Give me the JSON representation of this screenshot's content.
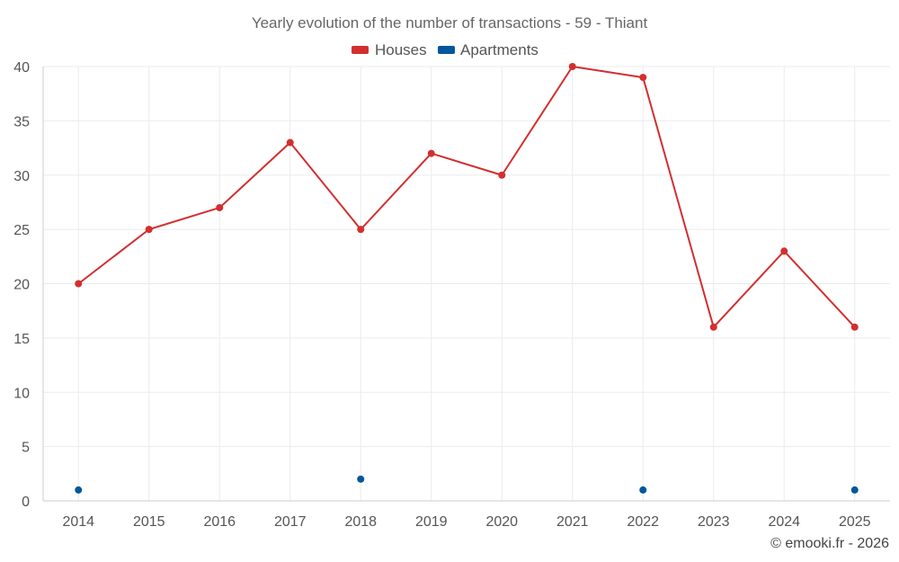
{
  "chart_data": {
    "type": "line",
    "title": "Yearly evolution of the number of transactions - 59 - Thiant",
    "categories": [
      "2014",
      "2015",
      "2016",
      "2017",
      "2018",
      "2019",
      "2020",
      "2021",
      "2022",
      "2023",
      "2024",
      "2025"
    ],
    "series": [
      {
        "name": "Houses",
        "color": "#d32f2f",
        "values": [
          20,
          25,
          27,
          33,
          25,
          32,
          30,
          40,
          39,
          16,
          23,
          16
        ],
        "line": true
      },
      {
        "name": "Apartments",
        "color": "#01579b",
        "values": [
          1,
          null,
          null,
          null,
          2,
          null,
          null,
          null,
          1,
          null,
          null,
          1
        ],
        "line": false
      }
    ],
    "y_ticks": [
      0,
      5,
      10,
      15,
      20,
      25,
      30,
      35,
      40
    ],
    "ylim": [
      0,
      40
    ],
    "xlabel": "",
    "ylabel": "",
    "grid": true,
    "legend": "top-center"
  },
  "credit": "© emooki.fr - 2026"
}
